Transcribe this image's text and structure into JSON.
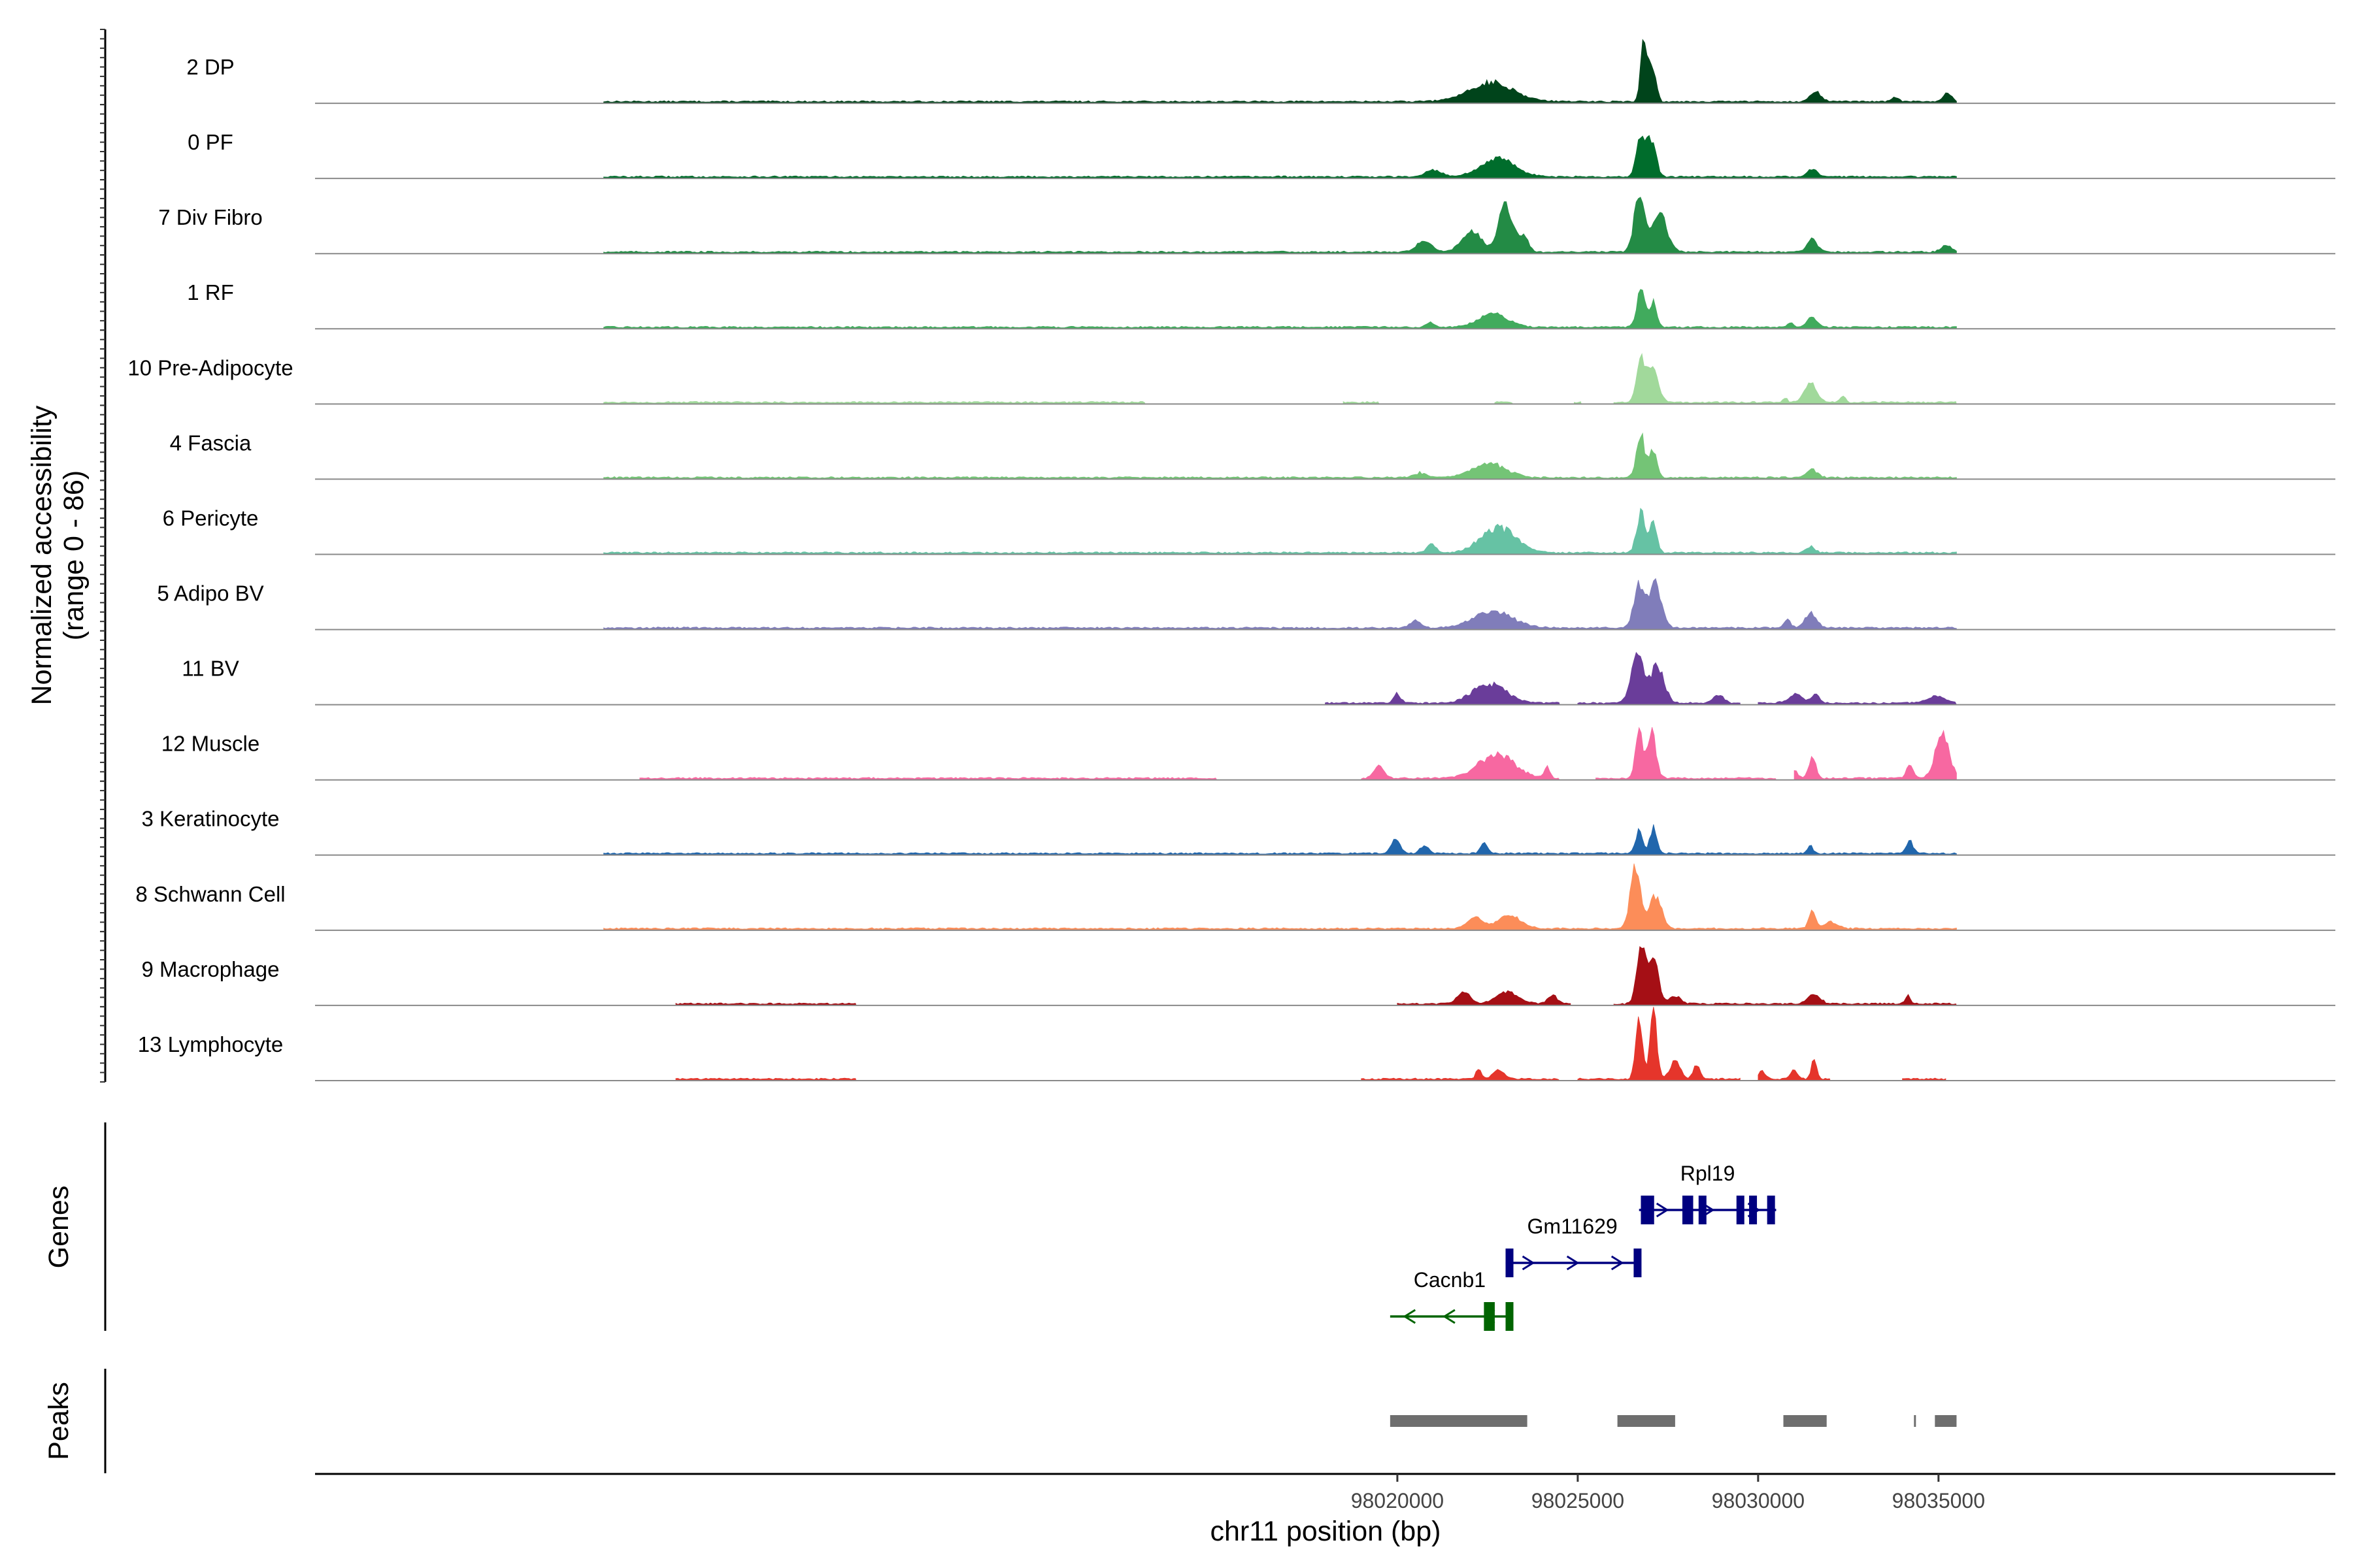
{
  "chart_data": {
    "type": "area",
    "title": "",
    "xlabel": "chr11 position (bp)",
    "ylabel": "Normalized accessibility",
    "ylabel_range": "(range 0 - 86)",
    "y_range": [
      0,
      86
    ],
    "xlim": [
      97990000,
      98046000
    ],
    "x_ticks": [
      98020000,
      98025000,
      98030000,
      98035000
    ],
    "x_tick_labels": [
      "98020000",
      "98025000",
      "98030000",
      "98035000"
    ],
    "genes_label": "Genes",
    "peaks_label": "Peaks",
    "tracks": [
      {
        "name": "2 DP",
        "color": "#00441b",
        "segments": [
          [
            97998000,
            98035500
          ]
        ],
        "peaks": [
          [
            98021300,
            98023900,
            24
          ],
          [
            98026650,
            98027000,
            68
          ],
          [
            98026800,
            98027200,
            36
          ],
          [
            98027000,
            98027300,
            24
          ],
          [
            98031300,
            98031900,
            13
          ],
          [
            98033600,
            98034000,
            5
          ],
          [
            98035000,
            98035500,
            10
          ]
        ]
      },
      {
        "name": "0 PF",
        "color": "#006d2c",
        "segments": [
          [
            97998000,
            98035500
          ]
        ],
        "peaks": [
          [
            98020500,
            98021500,
            8
          ],
          [
            98021800,
            98023800,
            22
          ],
          [
            98026500,
            98027000,
            55
          ],
          [
            98026800,
            98027300,
            48
          ],
          [
            98031200,
            98031800,
            10
          ]
        ]
      },
      {
        "name": "7 Div Fibro",
        "color": "#238b45",
        "segments": [
          [
            97998000,
            98035500
          ]
        ],
        "peaks": [
          [
            98020300,
            98021200,
            14
          ],
          [
            98021500,
            98022600,
            28
          ],
          [
            98022600,
            98023400,
            58
          ],
          [
            98023200,
            98023800,
            18
          ],
          [
            98026400,
            98027000,
            68
          ],
          [
            98026800,
            98027700,
            48
          ],
          [
            98031200,
            98031800,
            16
          ],
          [
            98034900,
            98035500,
            8
          ]
        ]
      },
      {
        "name": "1 RF",
        "color": "#41ab5d",
        "segments": [
          [
            97998000,
            98035500
          ]
        ],
        "peaks": [
          [
            98020700,
            98021100,
            6
          ],
          [
            98021800,
            98023500,
            16
          ],
          [
            98026500,
            98027000,
            44
          ],
          [
            98026900,
            98027300,
            30
          ],
          [
            98030700,
            98031100,
            5
          ],
          [
            98031200,
            98031800,
            12
          ]
        ]
      },
      {
        "name": "10 Pre-Adipocyte",
        "color": "#a1d99b",
        "segments": [
          [
            97998000,
            98013000
          ],
          [
            98018500,
            98019500
          ],
          [
            98022700,
            98023200
          ],
          [
            98024900,
            98025100
          ],
          [
            98026000,
            98035500
          ]
        ],
        "peaks": [
          [
            98020500,
            98020900,
            10
          ],
          [
            98021600,
            98022400,
            12
          ],
          [
            98026500,
            98027000,
            58
          ],
          [
            98026800,
            98027400,
            44
          ],
          [
            98030600,
            98030900,
            5
          ],
          [
            98031100,
            98031800,
            24
          ],
          [
            98032200,
            98032500,
            8
          ]
        ]
      },
      {
        "name": "4 Fascia",
        "color": "#74c476",
        "segments": [
          [
            97998000,
            98035500
          ]
        ],
        "peaks": [
          [
            98020300,
            98021000,
            6
          ],
          [
            98021600,
            98023500,
            18
          ],
          [
            98026500,
            98027000,
            52
          ],
          [
            98026900,
            98027300,
            36
          ],
          [
            98031200,
            98031800,
            10
          ]
        ]
      },
      {
        "name": "6 Pericyte",
        "color": "#66c2a4",
        "segments": [
          [
            97998000,
            98035500
          ]
        ],
        "peaks": [
          [
            98020700,
            98021200,
            12
          ],
          [
            98021800,
            98023800,
            32
          ],
          [
            98026500,
            98027000,
            50
          ],
          [
            98026900,
            98027300,
            38
          ],
          [
            98031200,
            98031700,
            8
          ]
        ]
      },
      {
        "name": "5 Adipo BV",
        "color": "#807dba",
        "segments": [
          [
            97998000,
            98035500
          ]
        ],
        "peaks": [
          [
            98020200,
            98020800,
            10
          ],
          [
            98021500,
            98023800,
            20
          ],
          [
            98026400,
            98027000,
            56
          ],
          [
            98026800,
            98027500,
            56
          ],
          [
            98030600,
            98031000,
            10
          ],
          [
            98031100,
            98031800,
            18
          ]
        ]
      },
      {
        "name": "11 BV",
        "color": "#6a3d9a",
        "segments": [
          [
            98018000,
            98024500
          ],
          [
            98025000,
            98029500
          ],
          [
            98030000,
            98035500
          ]
        ],
        "peaks": [
          [
            98019800,
            98020200,
            12
          ],
          [
            98021600,
            98023500,
            24
          ],
          [
            98026300,
            98027000,
            62
          ],
          [
            98026800,
            98027600,
            46
          ],
          [
            98028600,
            98029200,
            10
          ],
          [
            98030600,
            98031500,
            10
          ],
          [
            98031400,
            98031800,
            12
          ],
          [
            98034400,
            98035500,
            8
          ]
        ]
      },
      {
        "name": "12 Muscle",
        "color": "#f768a1",
        "segments": [
          [
            97999000,
            98015000
          ],
          [
            98019000,
            98024500
          ],
          [
            98025500,
            98030500
          ],
          [
            98031000,
            98035500
          ]
        ],
        "peaks": [
          [
            98019200,
            98019800,
            16
          ],
          [
            98021700,
            98023800,
            30
          ],
          [
            98024000,
            98024300,
            14
          ],
          [
            98026500,
            98026900,
            62
          ],
          [
            98026800,
            98027300,
            60
          ],
          [
            98030800,
            98031200,
            10
          ],
          [
            98031300,
            98031700,
            26
          ],
          [
            98034000,
            98034400,
            16
          ],
          [
            98034700,
            98035500,
            56
          ]
        ]
      },
      {
        "name": "3 Keratinocyte",
        "color": "#2166ac",
        "segments": [
          [
            97998000,
            98035500
          ]
        ],
        "peaks": [
          [
            98019700,
            98020200,
            18
          ],
          [
            98020500,
            98021000,
            10
          ],
          [
            98022200,
            98022600,
            14
          ],
          [
            98026500,
            98026900,
            30
          ],
          [
            98026900,
            98027300,
            32
          ],
          [
            98031300,
            98031600,
            10
          ],
          [
            98034000,
            98034400,
            16
          ]
        ]
      },
      {
        "name": "8 Schwann Cell",
        "color": "#fc8d59",
        "segments": [
          [
            97998000,
            98035500
          ]
        ],
        "peaks": [
          [
            98021700,
            98022600,
            14
          ],
          [
            98022400,
            98023800,
            16
          ],
          [
            98026300,
            98026900,
            76
          ],
          [
            98026800,
            98027500,
            42
          ],
          [
            98031300,
            98031700,
            20
          ],
          [
            98031600,
            98032400,
            8
          ]
        ]
      },
      {
        "name": "9 Macrophage",
        "color": "#a50f15",
        "segments": [
          [
            98000000,
            98005000
          ],
          [
            98020000,
            98024800
          ],
          [
            98026000,
            98035500
          ]
        ],
        "peaks": [
          [
            98021500,
            98022200,
            16
          ],
          [
            98022400,
            98023700,
            14
          ],
          [
            98024000,
            98024600,
            10
          ],
          [
            98026500,
            98027000,
            68
          ],
          [
            98026800,
            98027400,
            56
          ],
          [
            98027400,
            98028000,
            10
          ],
          [
            98031200,
            98031900,
            12
          ],
          [
            98034000,
            98034300,
            10
          ]
        ]
      },
      {
        "name": "13 Lymphocyte",
        "color": "#e5352b",
        "segments": [
          [
            98000000,
            98005000
          ],
          [
            98019000,
            98024500
          ],
          [
            98025000,
            98029500
          ],
          [
            98030000,
            98032000
          ],
          [
            98034000,
            98035200
          ]
        ],
        "peaks": [
          [
            98022100,
            98022400,
            12
          ],
          [
            98022500,
            98023100,
            12
          ],
          [
            98026500,
            98026900,
            70
          ],
          [
            98026900,
            98027300,
            82
          ],
          [
            98027400,
            98028000,
            22
          ],
          [
            98028100,
            98028500,
            18
          ],
          [
            98029900,
            98030300,
            10
          ],
          [
            98030800,
            98031200,
            12
          ],
          [
            98031400,
            98031700,
            26
          ]
        ]
      }
    ],
    "genes": [
      {
        "name": "Cacnb1",
        "color": "#006400",
        "strand": "-",
        "start": 98019800,
        "end": 98023100,
        "row": 3,
        "exons": [
          [
            98022400,
            98022700
          ],
          [
            98023000,
            98023100
          ]
        ]
      },
      {
        "name": "Gm11629",
        "color": "#000080",
        "strand": "+",
        "start": 98023000,
        "end": 98026700,
        "row": 2,
        "exons": [
          [
            98023000,
            98023200
          ],
          [
            98026550,
            98026700
          ]
        ]
      },
      {
        "name": "Rpl19",
        "color": "#000080",
        "strand": "+",
        "start": 98026700,
        "end": 98030500,
        "row": 1,
        "exons": [
          [
            98026750,
            98026800
          ],
          [
            98026900,
            98026950
          ],
          [
            98027900,
            98028200
          ],
          [
            98028350,
            98028450
          ],
          [
            98029400,
            98029500
          ],
          [
            98029750,
            98029850
          ],
          [
            98030250,
            98030450
          ]
        ]
      }
    ],
    "peaks": [
      [
        98019800,
        98023600
      ],
      [
        98026100,
        98027700
      ],
      [
        98030700,
        98031900
      ],
      [
        98034320,
        98034340
      ],
      [
        98034900,
        98035500
      ]
    ]
  }
}
